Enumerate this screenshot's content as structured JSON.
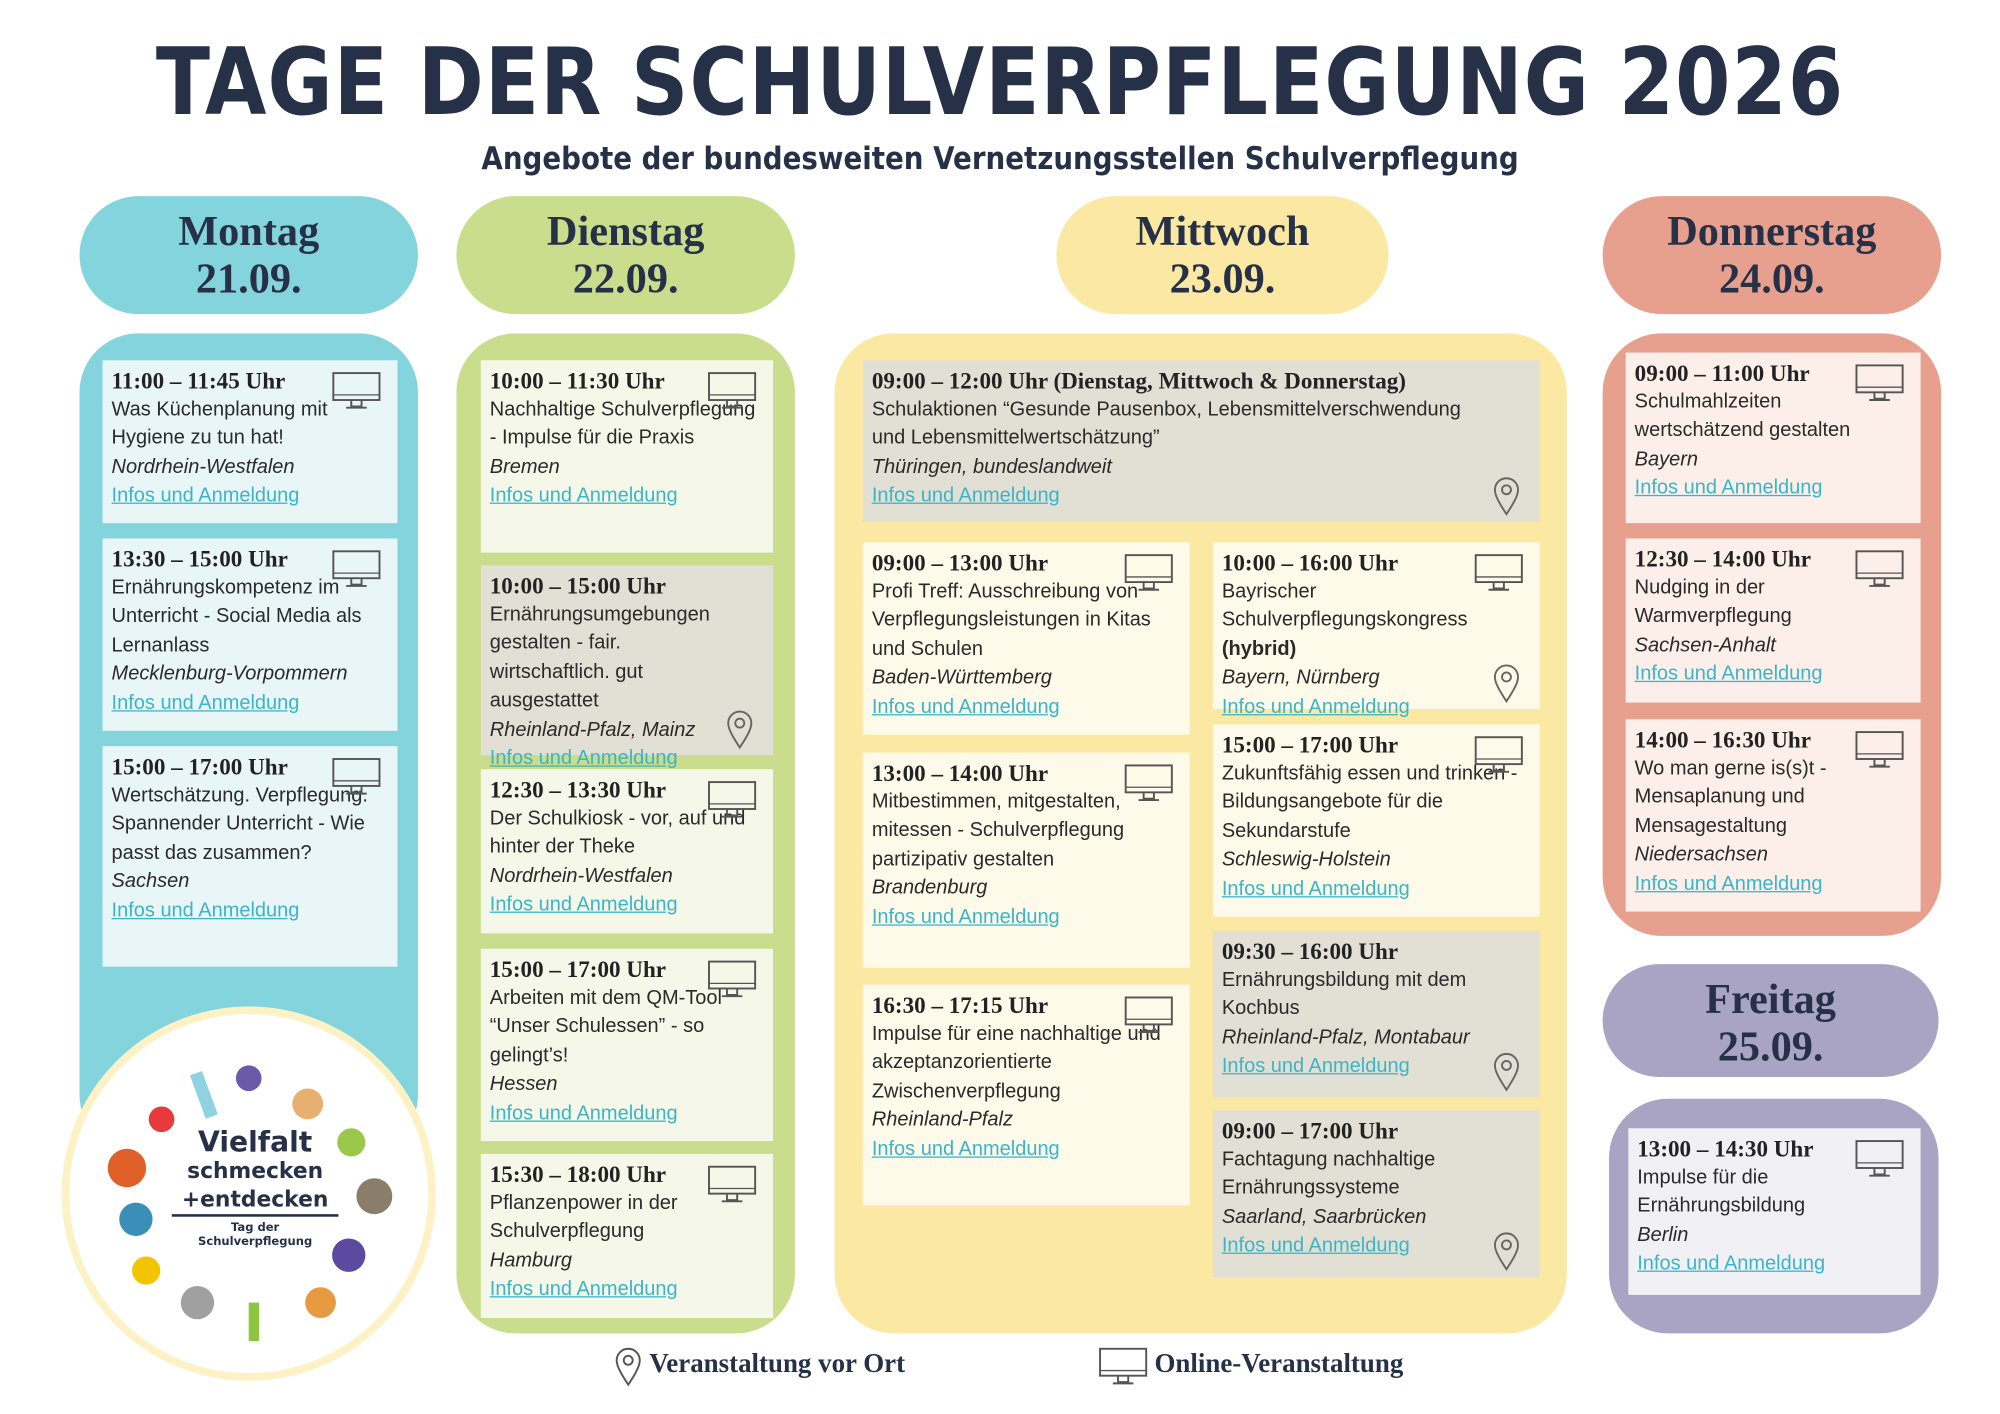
{
  "header": {
    "title": "TAGE DER SCHULVERPFLEGUNG 2026",
    "subtitle": "Angebote der bundesweiten Vernetzungsstellen Schulverpflegung"
  },
  "days": [
    {
      "name": "Montag",
      "date": "21.09.",
      "events": [
        {
          "time": "11:00 – 11:45 Uhr",
          "title": "Was Küchenplanung mit Hygiene zu tun hat!",
          "place": "Nordrhein-Westfalen",
          "link": "Infos und Anmeldung"
        },
        {
          "time": "13:30 – 15:00 Uhr",
          "title": "Ernährungskompetenz im Unterricht - Social Media als Lernanlass",
          "place": "Mecklenburg-Vorpommern",
          "link": "Infos und Anmeldung"
        },
        {
          "time": "15:00 – 17:00 Uhr",
          "title": "Wertschätzung. Verpflegung. Spannender Unterricht - Wie passt das zusammen?",
          "place": "Sachsen",
          "link": "Infos und Anmeldung"
        }
      ]
    },
    {
      "name": "Dienstag",
      "date": "22.09.",
      "events": [
        {
          "time": "10:00 – 11:30 Uhr",
          "title": "Nachhaltige Schulverpflegung - Impulse für die Praxis",
          "place": "Bremen",
          "link": "Infos und Anmeldung"
        },
        {
          "time": "10:00 – 15:00 Uhr",
          "title": "Ernährungsumgebungen gestalten - fair. wirtschaftlich. gut ausgestattet",
          "place": "Rheinland-Pfalz, Mainz",
          "link": "Infos und Anmeldung"
        },
        {
          "time": "12:30 – 13:30 Uhr",
          "title": "Der Schulkiosk - vor, auf und hinter der Theke",
          "place": "Nordrhein-Westfalen",
          "link": "Infos und Anmeldung"
        },
        {
          "time": "15:00 – 17:00 Uhr",
          "title": "Arbeiten mit dem QM-Tool “Unser Schulessen” - so gelingt’s!",
          "place": "Hessen",
          "link": "Infos und Anmeldung"
        },
        {
          "time": "15:30 – 18:00 Uhr",
          "title": "Pflanzenpower in der Schulverpflegung",
          "place": "Hamburg",
          "link": "Infos und Anmeldung"
        }
      ]
    },
    {
      "name": "Mittwoch",
      "date": "23.09.",
      "events": [
        {
          "time": "09:00 – 12:00 Uhr (Dienstag, Mittwoch & Donnerstag)",
          "title": "Schulaktionen “Gesunde Pausenbox, Lebensmittelverschwendung und Lebensmittelwertschätzung”",
          "place": "Thüringen, bundeslandweit",
          "link": "Infos und Anmeldung"
        },
        {
          "time": "09:00 – 13:00 Uhr",
          "title": "Profi Treff: Ausschreibung von Verpflegungsleistungen in Kitas und Schulen",
          "place": "Baden-Württemberg",
          "link": "Infos und Anmeldung"
        },
        {
          "time": "13:00 – 14:00 Uhr",
          "title": "Mitbestimmen, mitgestalten, mitessen - Schulverpflegung partizipativ gestalten",
          "place": "Brandenburg",
          "link": "Infos und Anmeldung"
        },
        {
          "time": "16:30 – 17:15 Uhr",
          "title": "Impulse für eine nachhaltige und akzeptanzorientierte Zwischenverpflegung",
          "place": "Rheinland-Pfalz",
          "link": "Infos und Anmeldung"
        },
        {
          "time": "10:00 – 16:00 Uhr",
          "title": "Bayrischer Schulverpflegungskongress",
          "note": "(hybrid)",
          "place": "Bayern, Nürnberg",
          "link": "Infos und Anmeldung"
        },
        {
          "time": "15:00 – 17:00 Uhr",
          "title": "Zukunftsfähig essen und trinken - Bildungsangebote für die Sekundarstufe",
          "place": "Schleswig-Holstein",
          "link": "Infos und Anmeldung"
        },
        {
          "time": "09:30 – 16:00 Uhr",
          "title": "Ernährungsbildung mit dem Kochbus",
          "place": "Rheinland-Pfalz, Montabaur",
          "link": "Infos und Anmeldung"
        },
        {
          "time": "09:00 – 17:00 Uhr",
          "title": "Fachtagung nachhaltige Ernährungssysteme",
          "place": "Saarland, Saarbrücken",
          "link": "Infos und Anmeldung"
        }
      ]
    },
    {
      "name": "Donnerstag",
      "date": "24.09.",
      "events": [
        {
          "time": "09:00 – 11:00 Uhr",
          "title": "Schulmahlzeiten wertschätzend gestalten",
          "place": "Bayern",
          "link": "Infos und Anmeldung"
        },
        {
          "time": "12:30 – 14:00 Uhr",
          "title": "Nudging in der Warmverpflegung",
          "place": "Sachsen-Anhalt",
          "link": "Infos und Anmeldung"
        },
        {
          "time": "14:00 – 16:30 Uhr",
          "title": "Wo man gerne is(s)t - Mensaplanung und Mensagestaltung",
          "place": "Niedersachsen",
          "link": "Infos und Anmeldung"
        }
      ]
    },
    {
      "name": "Freitag",
      "date": "25.09.",
      "events": [
        {
          "time": "13:00 – 14:30 Uhr",
          "title": "Impulse für die Ernährungsbildung",
          "place": "Berlin",
          "link": "Infos und Anmeldung"
        }
      ]
    }
  ],
  "legend": {
    "onsite": "Veranstaltung vor Ort",
    "online": "Online-Veranstaltung"
  },
  "logo": {
    "line1": "Vielfalt",
    "line2": "schmecken",
    "line3": "+entdecken",
    "line4": "Tag der",
    "line5": "Schulverpflegung"
  }
}
